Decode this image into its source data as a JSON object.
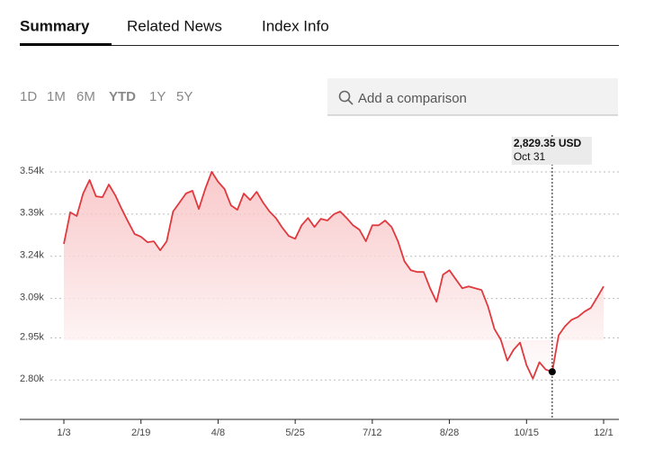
{
  "tabs": [
    "Summary",
    "Related News",
    "Index Info"
  ],
  "ranges": [
    "1D",
    "1M",
    "6M",
    "YTD",
    "1Y",
    "5Y"
  ],
  "search_placeholder": "Add a comparison",
  "chart_data": {
    "type": "line",
    "categories": [
      "1/3",
      null,
      null,
      null,
      null,
      null,
      null,
      null,
      null,
      null,
      null,
      null,
      "2/19",
      null,
      null,
      null,
      null,
      null,
      null,
      null,
      null,
      null,
      null,
      null,
      "4/8",
      null,
      null,
      null,
      null,
      null,
      null,
      null,
      null,
      null,
      null,
      null,
      "5/25",
      null,
      null,
      null,
      null,
      null,
      null,
      null,
      null,
      null,
      null,
      null,
      "7/12",
      null,
      null,
      null,
      null,
      null,
      null,
      null,
      null,
      null,
      null,
      null,
      "8/28",
      null,
      null,
      null,
      null,
      null,
      null,
      null,
      null,
      null,
      null,
      null,
      "10/15",
      null,
      null,
      null,
      null,
      null,
      null,
      null,
      null,
      null,
      null,
      null,
      "12/1"
    ],
    "series": [
      {
        "color": "#e0393e",
        "values": [
          3284,
          3396,
          3383,
          3463,
          3511,
          3453,
          3450,
          3495,
          3457,
          3408,
          3363,
          3319,
          3309,
          3290,
          3293,
          3261,
          3293,
          3399,
          3431,
          3463,
          3473,
          3408,
          3479,
          3540,
          3505,
          3479,
          3421,
          3405,
          3463,
          3440,
          3469,
          3431,
          3399,
          3376,
          3341,
          3312,
          3302,
          3350,
          3376,
          3344,
          3373,
          3367,
          3389,
          3399,
          3376,
          3350,
          3334,
          3293,
          3350,
          3350,
          3367,
          3344,
          3293,
          3222,
          3190,
          3184,
          3184,
          3126,
          3078,
          3174,
          3190,
          3158,
          3126,
          3133,
          3126,
          3120,
          3062,
          2982,
          2943,
          2869,
          2908,
          2933,
          2853,
          2805,
          2863,
          2837,
          2829.35,
          2959,
          2991,
          3014,
          3024,
          3043,
          3056,
          3094,
          3133
        ],
        "value_labels": [
          null,
          null,
          null,
          null,
          null,
          null,
          null,
          null,
          null,
          null,
          null,
          null,
          null,
          null,
          null,
          null,
          null,
          null,
          null,
          null,
          null,
          null,
          null,
          null,
          null,
          null,
          null,
          null,
          null,
          null,
          null,
          null,
          null,
          null,
          null,
          null,
          null,
          null,
          null,
          null,
          null,
          null,
          null,
          null,
          null,
          null,
          null,
          null,
          null,
          null,
          null,
          null,
          null,
          null,
          null,
          null,
          null,
          null,
          null,
          null,
          null,
          null,
          null,
          null,
          null,
          null,
          null,
          null,
          null,
          null,
          null,
          null,
          null,
          null,
          null,
          null,
          "2,829.35 USD",
          null,
          null,
          null,
          null,
          null,
          null,
          null,
          null
        ]
      }
    ],
    "hover_date": "Oct 31",
    "ylim": [
      2660,
      3575
    ],
    "yticks": [
      {
        "value": 3540,
        "label": "3.54k"
      },
      {
        "value": 3390,
        "label": "3.39k"
      },
      {
        "value": 3240,
        "label": "3.24k"
      },
      {
        "value": 3090,
        "label": "3.09k"
      },
      {
        "value": 2950,
        "label": "2.95k"
      },
      {
        "value": 2800,
        "label": "2.80k"
      }
    ],
    "grid": true
  }
}
